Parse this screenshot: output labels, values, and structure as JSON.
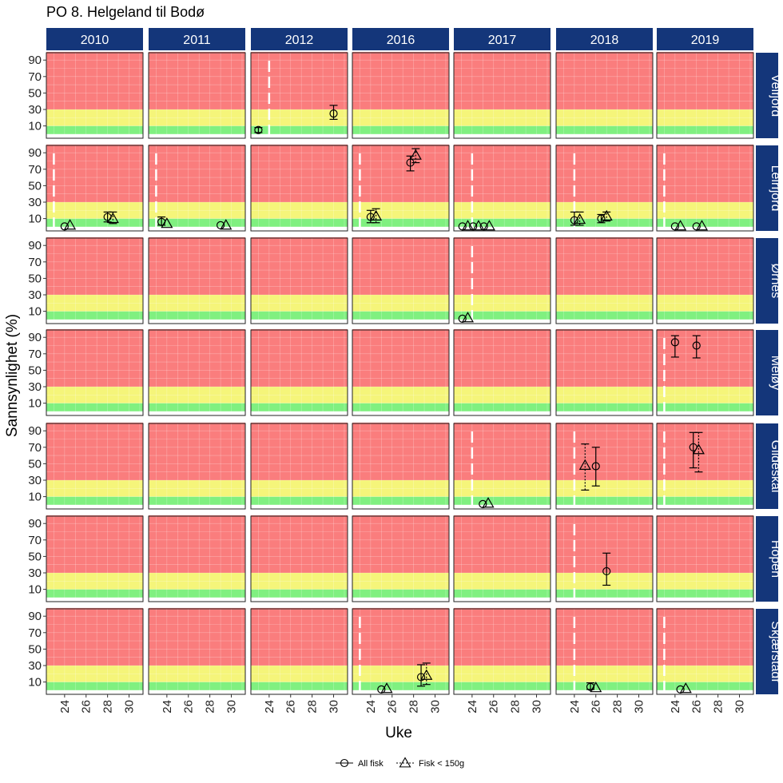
{
  "chart_data": {
    "type": "scatter",
    "title": "PO 8. Helgeland til Bodø",
    "xlabel": "Uke",
    "ylabel": "Sannsynlighet (%)",
    "years": [
      "2010",
      "2011",
      "2012",
      "2016",
      "2017",
      "2018",
      "2019"
    ],
    "sites": [
      "Velfjord",
      "Leirfjord",
      "Ørnes",
      "Meløy",
      "Gildeskål",
      "Hopen",
      "Skjærstadf"
    ],
    "x_range": [
      22.3,
      31.3
    ],
    "y_range": [
      -3,
      97
    ],
    "x_ticks": [
      24,
      26,
      28,
      30
    ],
    "x_tick_labels": [
      "24",
      "26",
      "28",
      "30"
    ],
    "y_ticks": [
      10,
      30,
      50,
      70,
      90
    ],
    "y_tick_labels": [
      "10",
      "30",
      "50",
      "70",
      "90"
    ],
    "bands": [
      {
        "from": 0,
        "to": 10,
        "color": "#80f080"
      },
      {
        "from": 10,
        "to": 30,
        "color": "#f5f57a"
      },
      {
        "from": 30,
        "to": 100,
        "color": "#fa7d7d"
      }
    ],
    "colors": {
      "strip_bg": "#14367a",
      "strip_text": "#ffffff",
      "marker": "#000000",
      "vline": "#ffffff"
    },
    "legend": {
      "position": "bottom",
      "items": [
        {
          "label": "All fisk",
          "shape": "circle",
          "line": "solid"
        },
        {
          "label": "Fisk < 150g",
          "shape": "triangle",
          "line": "dotted"
        }
      ]
    },
    "vlines": [
      {
        "site": "Velfjord",
        "year": "2012",
        "x": 24
      },
      {
        "site": "Leirfjord",
        "year": "2010",
        "x": 23
      },
      {
        "site": "Leirfjord",
        "year": "2011",
        "x": 23
      },
      {
        "site": "Leirfjord",
        "year": "2016",
        "x": 23
      },
      {
        "site": "Leirfjord",
        "year": "2017",
        "x": 24
      },
      {
        "site": "Leirfjord",
        "year": "2018",
        "x": 24
      },
      {
        "site": "Leirfjord",
        "year": "2019",
        "x": 23
      },
      {
        "site": "Ørnes",
        "year": "2017",
        "x": 24
      },
      {
        "site": "Meløy",
        "year": "2019",
        "x": 23
      },
      {
        "site": "Gildeskål",
        "year": "2017",
        "x": 24
      },
      {
        "site": "Gildeskål",
        "year": "2018",
        "x": 24
      },
      {
        "site": "Gildeskål",
        "year": "2019",
        "x": 23
      },
      {
        "site": "Hopen",
        "year": "2018",
        "x": 24
      },
      {
        "site": "Skjærstadf",
        "year": "2016",
        "x": 23
      },
      {
        "site": "Skjærstadf",
        "year": "2018",
        "x": 24
      },
      {
        "site": "Skjærstadf",
        "year": "2019",
        "x": 23
      }
    ],
    "points": [
      {
        "site": "Velfjord",
        "year": "2012",
        "series": "All fisk",
        "x": 23,
        "y": 5,
        "lo": 2,
        "hi": 8
      },
      {
        "site": "Velfjord",
        "year": "2012",
        "series": "All fisk",
        "x": 30,
        "y": 25,
        "lo": 18,
        "hi": 35
      },
      {
        "site": "Leirfjord",
        "year": "2010",
        "series": "All fisk",
        "x": 24,
        "y": 0.5
      },
      {
        "site": "Leirfjord",
        "year": "2010",
        "series": "Fisk < 150g",
        "x": 24.5,
        "y": 2
      },
      {
        "site": "Leirfjord",
        "year": "2010",
        "series": "All fisk",
        "x": 28,
        "y": 12,
        "lo": 6,
        "hi": 18
      },
      {
        "site": "Leirfjord",
        "year": "2010",
        "series": "Fisk < 150g",
        "x": 28.5,
        "y": 10,
        "lo": 4,
        "hi": 18
      },
      {
        "site": "Leirfjord",
        "year": "2011",
        "series": "All fisk",
        "x": 23.5,
        "y": 6,
        "lo": 2,
        "hi": 12
      },
      {
        "site": "Leirfjord",
        "year": "2011",
        "series": "Fisk < 150g",
        "x": 24,
        "y": 4
      },
      {
        "site": "Leirfjord",
        "year": "2011",
        "series": "All fisk",
        "x": 29,
        "y": 2
      },
      {
        "site": "Leirfjord",
        "year": "2011",
        "series": "Fisk < 150g",
        "x": 29.5,
        "y": 2
      },
      {
        "site": "Leirfjord",
        "year": "2016",
        "series": "All fisk",
        "x": 24,
        "y": 12,
        "lo": 5,
        "hi": 20
      },
      {
        "site": "Leirfjord",
        "year": "2016",
        "series": "Fisk < 150g",
        "x": 24.5,
        "y": 13,
        "lo": 5,
        "hi": 22
      },
      {
        "site": "Leirfjord",
        "year": "2016",
        "series": "All fisk",
        "x": 27.7,
        "y": 78,
        "lo": 68,
        "hi": 86
      },
      {
        "site": "Leirfjord",
        "year": "2016",
        "series": "Fisk < 150g",
        "x": 28.2,
        "y": 87,
        "lo": 78,
        "hi": 95
      },
      {
        "site": "Leirfjord",
        "year": "2017",
        "series": "All fisk",
        "x": 23.1,
        "y": 0.5
      },
      {
        "site": "Leirfjord",
        "year": "2017",
        "series": "Fisk < 150g",
        "x": 23.6,
        "y": 1
      },
      {
        "site": "Leirfjord",
        "year": "2017",
        "series": "All fisk",
        "x": 24.1,
        "y": 0.5
      },
      {
        "site": "Leirfjord",
        "year": "2017",
        "series": "Fisk < 150g",
        "x": 24.6,
        "y": 1
      },
      {
        "site": "Leirfjord",
        "year": "2017",
        "series": "All fisk",
        "x": 25.1,
        "y": 0.5
      },
      {
        "site": "Leirfjord",
        "year": "2017",
        "series": "Fisk < 150g",
        "x": 25.6,
        "y": 1
      },
      {
        "site": "Leirfjord",
        "year": "2018",
        "series": "All fisk",
        "x": 24,
        "y": 8,
        "lo": 2,
        "hi": 18
      },
      {
        "site": "Leirfjord",
        "year": "2018",
        "series": "Fisk < 150g",
        "x": 24.5,
        "y": 9,
        "lo": 2,
        "hi": 18
      },
      {
        "site": "Leirfjord",
        "year": "2018",
        "series": "All fisk",
        "x": 26.5,
        "y": 10,
        "lo": 5,
        "hi": 15
      },
      {
        "site": "Leirfjord",
        "year": "2018",
        "series": "Fisk < 150g",
        "x": 27,
        "y": 13,
        "lo": 7,
        "hi": 18
      },
      {
        "site": "Leirfjord",
        "year": "2019",
        "series": "All fisk",
        "x": 24,
        "y": 0.5
      },
      {
        "site": "Leirfjord",
        "year": "2019",
        "series": "Fisk < 150g",
        "x": 24.5,
        "y": 1
      },
      {
        "site": "Leirfjord",
        "year": "2019",
        "series": "All fisk",
        "x": 26,
        "y": 0.5
      },
      {
        "site": "Leirfjord",
        "year": "2019",
        "series": "Fisk < 150g",
        "x": 26.5,
        "y": 1
      },
      {
        "site": "Ørnes",
        "year": "2017",
        "series": "All fisk",
        "x": 23.1,
        "y": 1
      },
      {
        "site": "Ørnes",
        "year": "2017",
        "series": "Fisk < 150g",
        "x": 23.6,
        "y": 2
      },
      {
        "site": "Meløy",
        "year": "2019",
        "series": "All fisk",
        "x": 24,
        "y": 84,
        "lo": 66,
        "hi": 92
      },
      {
        "site": "Meløy",
        "year": "2019",
        "series": "All fisk",
        "x": 26,
        "y": 80,
        "lo": 65,
        "hi": 92
      },
      {
        "site": "Gildeskål",
        "year": "2017",
        "series": "All fisk",
        "x": 25,
        "y": 1
      },
      {
        "site": "Gildeskål",
        "year": "2017",
        "series": "Fisk < 150g",
        "x": 25.5,
        "y": 2
      },
      {
        "site": "Gildeskål",
        "year": "2018",
        "series": "Fisk < 150g",
        "x": 25,
        "y": 48,
        "lo": 18,
        "hi": 74
      },
      {
        "site": "Gildeskål",
        "year": "2018",
        "series": "All fisk",
        "x": 26,
        "y": 47,
        "lo": 23,
        "hi": 70
      },
      {
        "site": "Gildeskål",
        "year": "2019",
        "series": "All fisk",
        "x": 25.7,
        "y": 70,
        "lo": 45,
        "hi": 88
      },
      {
        "site": "Gildeskål",
        "year": "2019",
        "series": "Fisk < 150g",
        "x": 26.2,
        "y": 67,
        "lo": 40,
        "hi": 88
      },
      {
        "site": "Hopen",
        "year": "2018",
        "series": "All fisk",
        "x": 27,
        "y": 32,
        "lo": 15,
        "hi": 54
      },
      {
        "site": "Skjærstadf",
        "year": "2016",
        "series": "All fisk",
        "x": 25,
        "y": 1
      },
      {
        "site": "Skjærstadf",
        "year": "2016",
        "series": "Fisk < 150g",
        "x": 25.5,
        "y": 2
      },
      {
        "site": "Skjærstadf",
        "year": "2016",
        "series": "All fisk",
        "x": 28.7,
        "y": 16,
        "lo": 5,
        "hi": 31
      },
      {
        "site": "Skjærstadf",
        "year": "2016",
        "series": "Fisk < 150g",
        "x": 29.2,
        "y": 18,
        "lo": 7,
        "hi": 33
      },
      {
        "site": "Skjærstadf",
        "year": "2018",
        "series": "All fisk",
        "x": 25.5,
        "y": 4,
        "lo": 1,
        "hi": 9
      },
      {
        "site": "Skjærstadf",
        "year": "2018",
        "series": "Fisk < 150g",
        "x": 26,
        "y": 3
      },
      {
        "site": "Skjærstadf",
        "year": "2019",
        "series": "All fisk",
        "x": 24.5,
        "y": 1
      },
      {
        "site": "Skjærstadf",
        "year": "2019",
        "series": "Fisk < 150g",
        "x": 25,
        "y": 2
      }
    ]
  }
}
